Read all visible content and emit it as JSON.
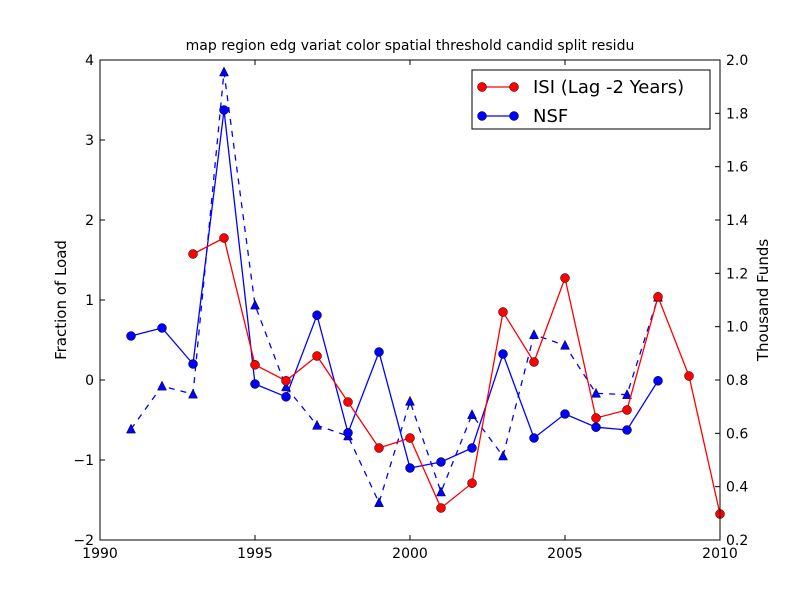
{
  "chart_data": {
    "type": "line",
    "title": "map region edg variat color spatial threshold candid split residu",
    "xlabel": "",
    "ylabel": "Fraction of Load",
    "ylabel_right": "Thousand Funds",
    "xlim": [
      1990,
      2010
    ],
    "ylim": [
      -2,
      4
    ],
    "ylim_right": [
      0.2,
      2.0
    ],
    "xticks": [
      "1990",
      "1995",
      "2000",
      "2005",
      "2010"
    ],
    "yticks": [
      "−2",
      "−1",
      "0",
      "1",
      "2",
      "3",
      "4"
    ],
    "yticks_right": [
      "0.2",
      "0.4",
      "0.6",
      "0.8",
      "1.0",
      "1.2",
      "1.4",
      "1.6",
      "1.8",
      "2.0"
    ],
    "legend_placement": "top-right",
    "grid": false,
    "series": [
      {
        "name": "ISI (Lag -2 Years)",
        "axis": "left",
        "color": "#ff0000",
        "marker": "circle",
        "linestyle": "solid",
        "in_legend": true,
        "x": [
          1993,
          1994,
          1995,
          1996,
          1997,
          1998,
          1999,
          2000,
          2001,
          2002,
          2003,
          2004,
          2005,
          2006,
          2007,
          2008,
          2009,
          2010
        ],
        "y": [
          1.575,
          1.775,
          0.19,
          -0.01,
          0.3,
          -0.275,
          -0.85,
          -0.725,
          -1.6,
          -1.29,
          0.85,
          0.225,
          1.275,
          -0.475,
          -0.375,
          1.04,
          0.05,
          -1.675
        ]
      },
      {
        "name": "NSF",
        "axis": "left",
        "color": "#0000ff",
        "marker": "circle",
        "linestyle": "solid",
        "in_legend": true,
        "x": [
          1991,
          1992,
          1993,
          1994,
          1995,
          1996,
          1997,
          1998,
          1999,
          2000,
          2001,
          2002,
          2003,
          2004,
          2005,
          2006,
          2007,
          2008
        ],
        "y": [
          0.55,
          0.65,
          0.2,
          3.375,
          -0.05,
          -0.21,
          0.81,
          -0.66,
          0.35,
          -1.1,
          -1.025,
          -0.85,
          0.325,
          -0.725,
          -0.425,
          -0.59,
          -0.625,
          -0.01
        ]
      },
      {
        "name": "NSF (funds)",
        "axis": "right",
        "color": "#0000ff",
        "marker": "triangle",
        "linestyle": "dashed",
        "in_legend": false,
        "x": [
          1991,
          1992,
          1993,
          1994,
          1995,
          1996,
          1997,
          1998,
          1999,
          2000,
          2001,
          2002,
          2003,
          2004,
          2005,
          2006,
          2007,
          2008
        ],
        "y": [
          0.616,
          0.777,
          0.747,
          1.955,
          1.081,
          0.774,
          0.63,
          0.59,
          0.34,
          0.72,
          0.38,
          0.67,
          0.515,
          0.97,
          0.93,
          0.75,
          0.745,
          1.11
        ]
      }
    ]
  }
}
